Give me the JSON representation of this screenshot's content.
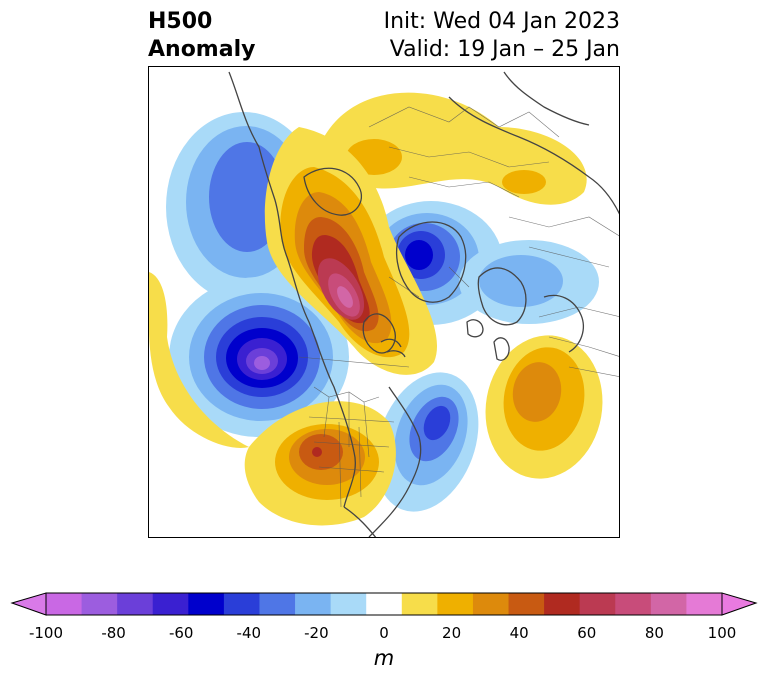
{
  "title": {
    "left_line1": "H500",
    "left_line2": "Anomaly",
    "right_line1": "Init: Wed 04 Jan 2023",
    "right_line2": "Valid: 19 Jan – 25 Jan"
  },
  "colorbar": {
    "label": "m",
    "ticks": [
      "-100",
      "-80",
      "-60",
      "-40",
      "-20",
      "0",
      "20",
      "40",
      "60",
      "80",
      "100"
    ],
    "levels": [
      -100,
      -90,
      -80,
      -70,
      -60,
      -50,
      -40,
      -30,
      -20,
      -10,
      10,
      20,
      30,
      40,
      50,
      60,
      70,
      80,
      90,
      100
    ],
    "colors": [
      "#c968e4",
      "#9c5ddf",
      "#6b3fd9",
      "#3a20d1",
      "#0000cc",
      "#2a3ed8",
      "#4f76e6",
      "#7ab4f2",
      "#a9daf8",
      "#ffffff",
      "#f7dd4a",
      "#efb000",
      "#dd8a0c",
      "#c85a12",
      "#b02a20",
      "#bb3a52",
      "#c84c7a",
      "#d266a6",
      "#e57ad6"
    ],
    "under_color": "#d97ae8",
    "over_color": "#e97ae0"
  },
  "map": {
    "field": "H500 Anomaly",
    "units": "m",
    "features": [
      {
        "type": "ridge",
        "region": "Western Canada / Northern Plains",
        "peak": 80
      },
      {
        "type": "trough",
        "region": "Northeast Pacific (off California)",
        "peak": -80
      },
      {
        "type": "trough",
        "region": "Gulf of Alaska",
        "peak": -40
      },
      {
        "type": "trough",
        "region": "Arctic / Greenland",
        "peak": -60
      },
      {
        "type": "trough",
        "region": "Eastern North America",
        "peak": -50
      },
      {
        "type": "ridge",
        "region": "Central Atlantic",
        "peak": 40
      },
      {
        "type": "ridge",
        "region": "Southwestern US",
        "peak": 60
      },
      {
        "type": "ridge",
        "region": "Northern Eurasia",
        "peak": 20
      },
      {
        "type": "trough",
        "region": "Northern Europe",
        "peak": -20
      }
    ]
  }
}
